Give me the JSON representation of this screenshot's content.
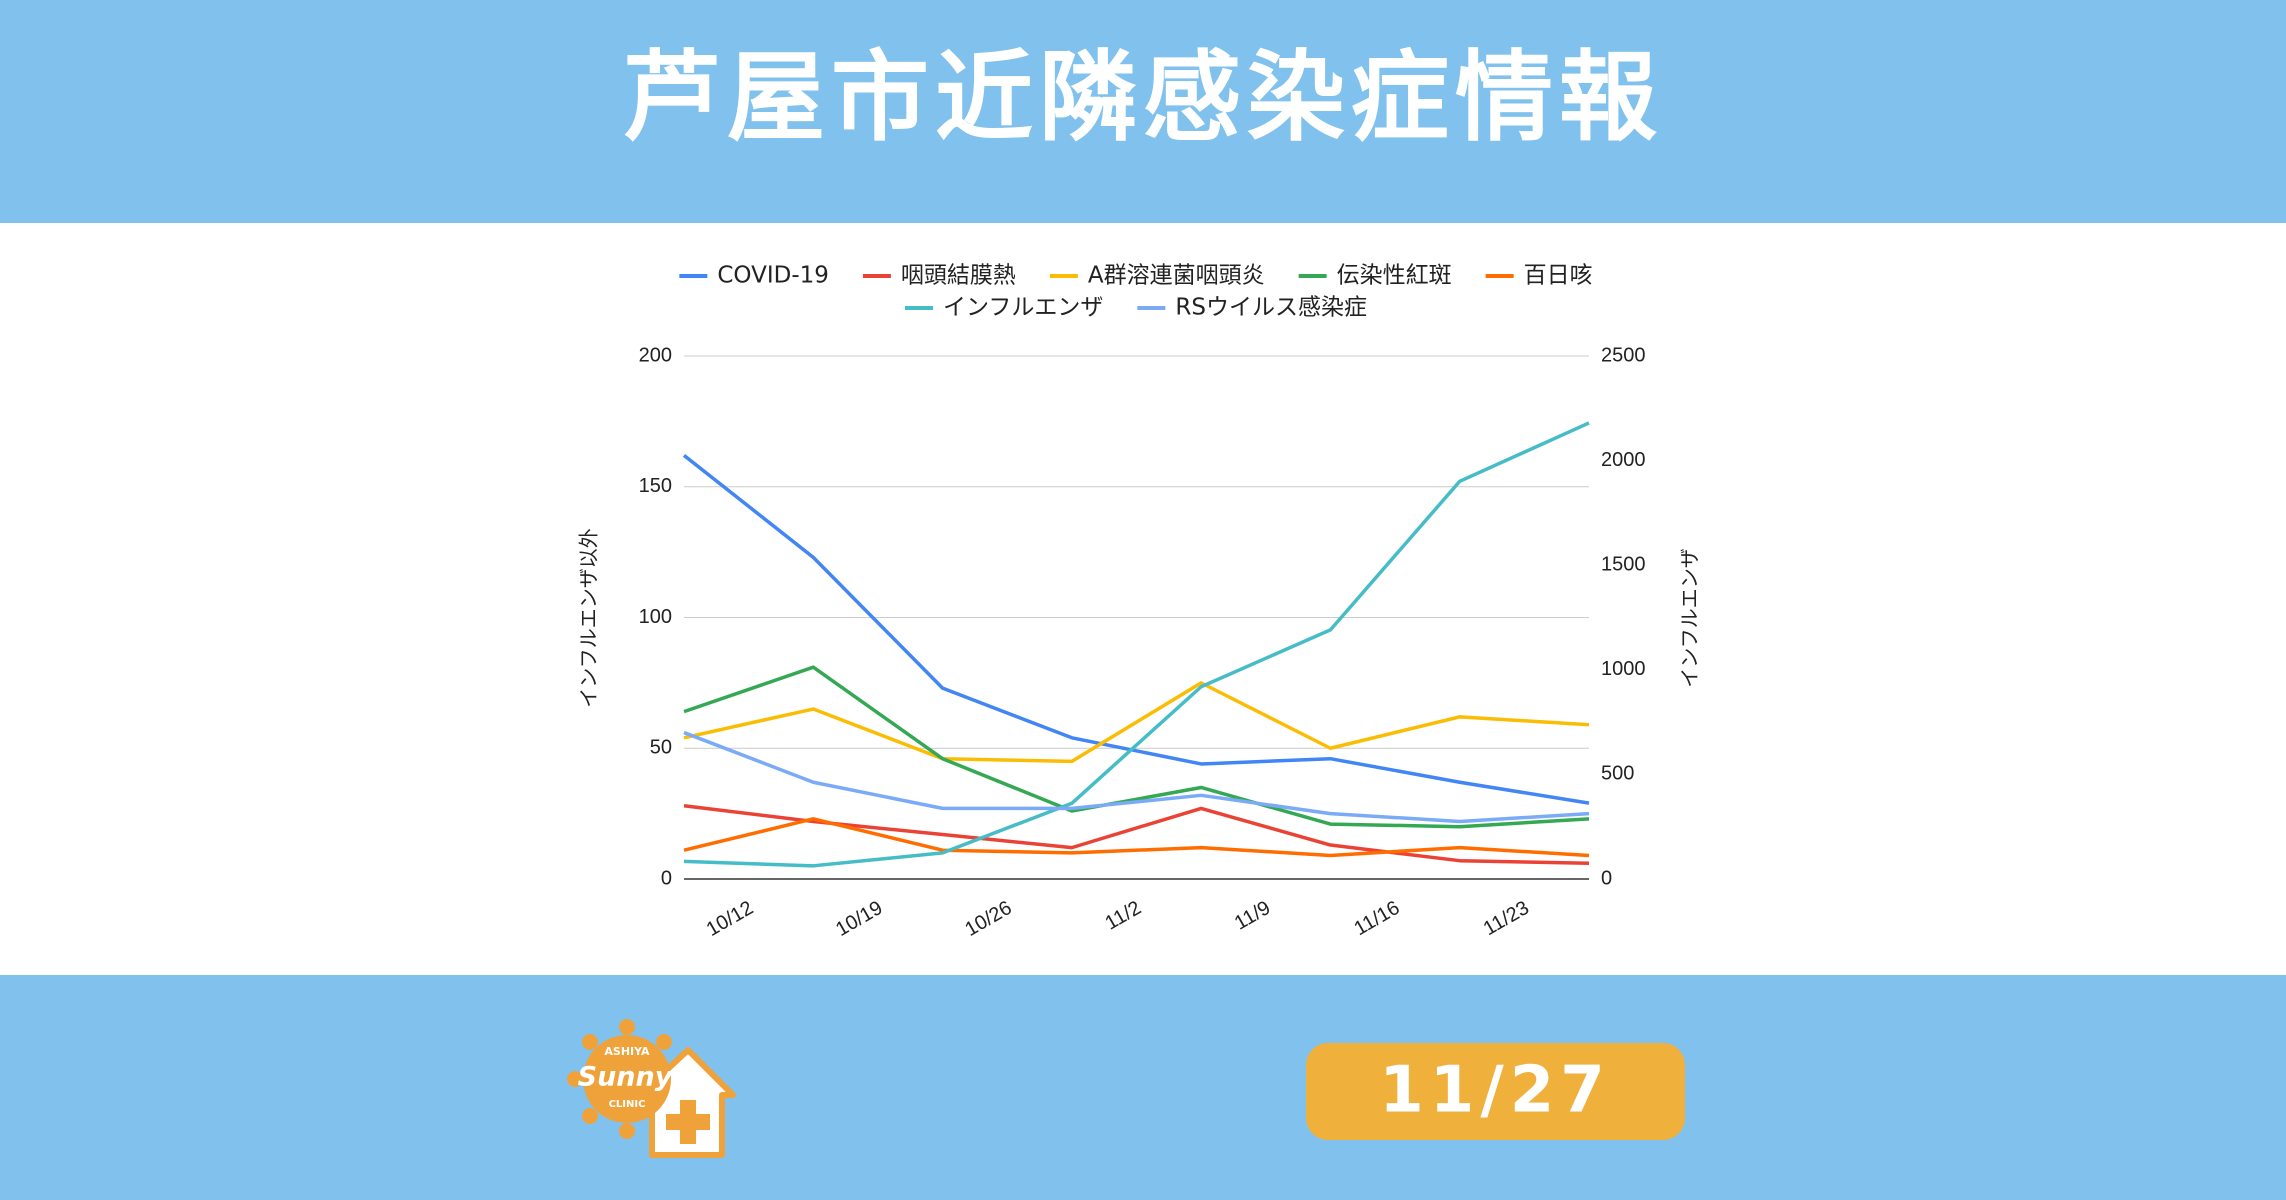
{
  "header": {
    "title": "芦屋市近隣感染症情報"
  },
  "chart_data": {
    "type": "line",
    "categories": [
      "10/12",
      "10/19",
      "10/26",
      "11/2",
      "11/9",
      "11/16",
      "11/23",
      null
    ],
    "series": [
      {
        "name": "COVID-19",
        "color": "#4285f4",
        "values": [
          162,
          123,
          73,
          54,
          44,
          46,
          37,
          29
        ]
      },
      {
        "name": "咽頭結膜熱",
        "color": "#ea4335",
        "values": [
          28,
          22,
          17,
          12,
          27,
          13,
          7,
          6
        ]
      },
      {
        "name": "A群溶連菌咽頭炎",
        "color": "#fbbc04",
        "values": [
          54,
          65,
          46,
          45,
          75,
          50,
          62,
          59
        ]
      },
      {
        "name": "伝染性紅斑",
        "color": "#34a853",
        "values": [
          64,
          81,
          46,
          26,
          35,
          21,
          20,
          23
        ]
      },
      {
        "name": "百日咳",
        "color": "#ff6d01",
        "values": [
          11,
          23,
          11,
          10,
          12,
          9,
          12,
          9
        ]
      },
      {
        "name": "インフルエンザ",
        "color": "#46bdc6",
        "axis": "y2",
        "values": [
          84,
          63,
          125,
          362,
          919,
          1191,
          1901,
          2180
        ]
      },
      {
        "name": "RSウイルス感染症",
        "color": "#7baaf7",
        "values": [
          56,
          37,
          27,
          27,
          32,
          25,
          22,
          25
        ]
      }
    ],
    "ylabel": "インフルエンザ以外",
    "y2label": "インフルエンザ",
    "ylim": [
      0,
      200
    ],
    "yticks": [
      0,
      50,
      100,
      150,
      200
    ],
    "y2lim": [
      0,
      2500
    ],
    "y2ticks": [
      0,
      500,
      1000,
      1500,
      2000,
      2500
    ],
    "grid": true
  },
  "footer": {
    "date": "11/27",
    "logo": {
      "top": "ASHIYA",
      "brand": "Sunny",
      "bottom": "CLINIC"
    }
  }
}
